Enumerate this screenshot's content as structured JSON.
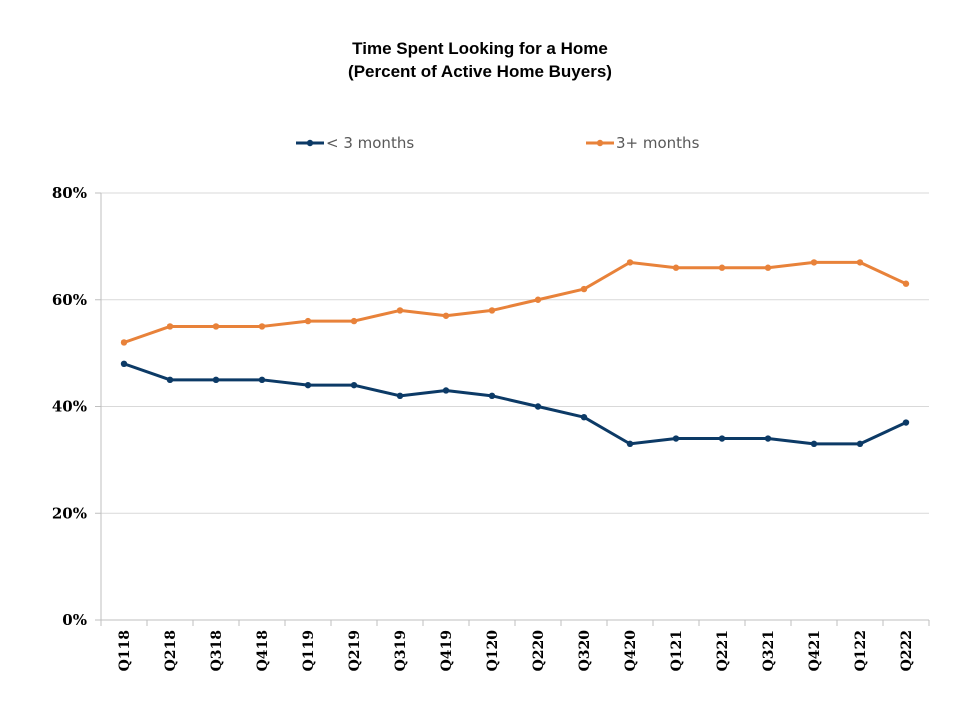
{
  "chart_data": {
    "type": "line",
    "title": "Time Spent Looking for a Home",
    "subtitle": "(Percent of Active Home Buyers)",
    "xlabel": "",
    "ylabel": "",
    "ylim": [
      0,
      80
    ],
    "yticks": [
      0,
      20,
      40,
      60,
      80
    ],
    "ytick_labels": [
      "0%",
      "20%",
      "40%",
      "60%",
      "80%"
    ],
    "grid": true,
    "legend_position": "top-center",
    "categories": [
      "Q118",
      "Q218",
      "Q318",
      "Q418",
      "Q119",
      "Q219",
      "Q319",
      "Q419",
      "Q120",
      "Q220",
      "Q320",
      "Q420",
      "Q121",
      "Q221",
      "Q321",
      "Q421",
      "Q122",
      "Q222"
    ],
    "series": [
      {
        "name": "< 3 months",
        "color": "#0c3a66",
        "values": [
          48,
          45,
          45,
          45,
          44,
          44,
          42,
          43,
          42,
          40,
          38,
          33,
          34,
          34,
          34,
          33,
          33,
          37
        ]
      },
      {
        "name": "3+ months",
        "color": "#e8823a",
        "values": [
          52,
          55,
          55,
          55,
          56,
          56,
          58,
          57,
          58,
          60,
          62,
          67,
          66,
          66,
          66,
          67,
          67,
          63
        ]
      }
    ]
  }
}
